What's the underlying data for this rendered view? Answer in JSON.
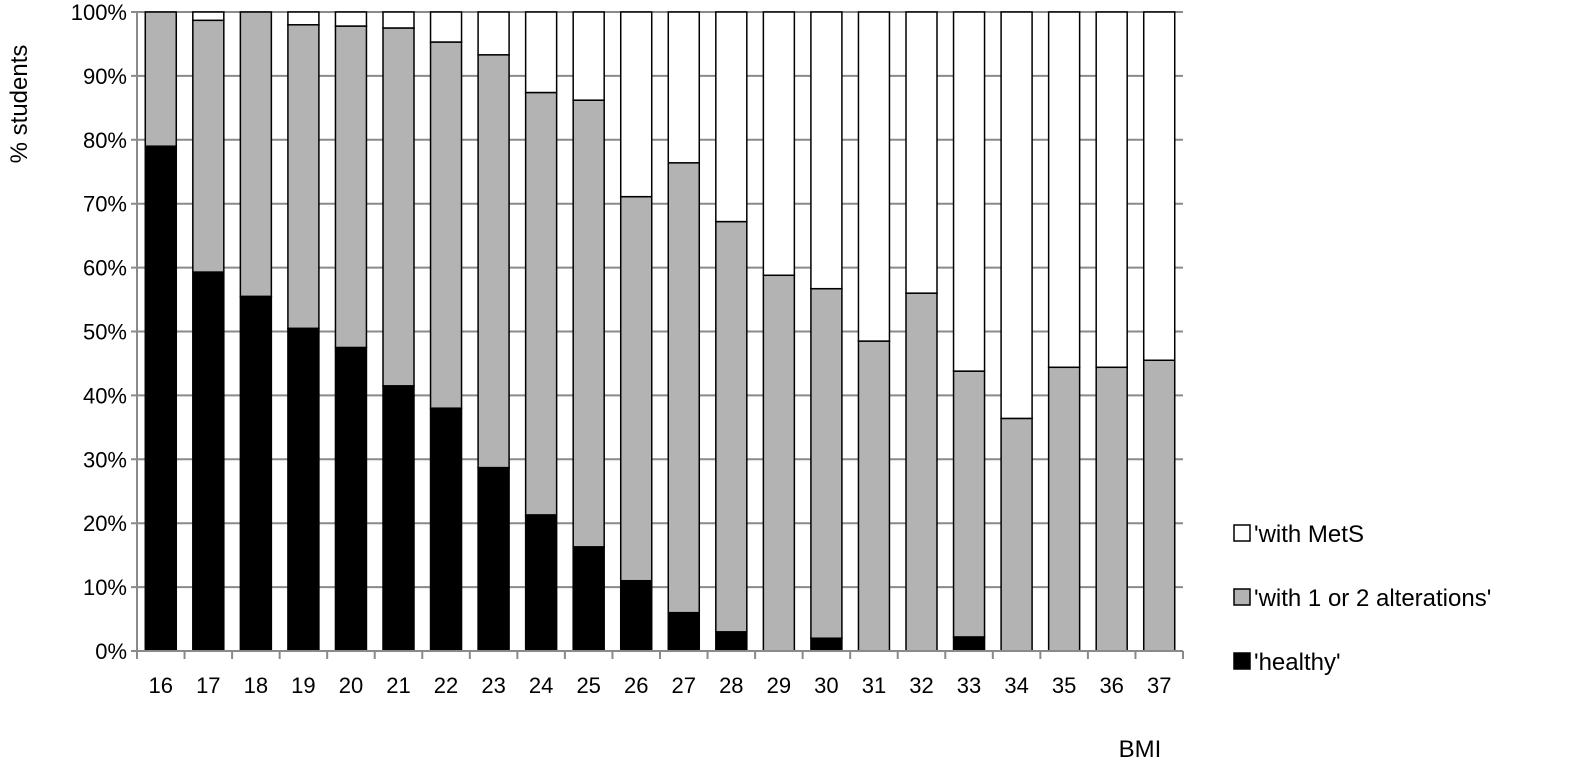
{
  "chart_data": {
    "type": "bar",
    "stacked": true,
    "percent": true,
    "categories": [
      "16",
      "17",
      "18",
      "19",
      "20",
      "21",
      "22",
      "23",
      "24",
      "25",
      "26",
      "27",
      "28",
      "29",
      "30",
      "31",
      "32",
      "33",
      "34",
      "35",
      "36",
      "37"
    ],
    "series": [
      {
        "name": "'healthy'",
        "color": "#000000",
        "values": [
          79,
          59.3,
          55.5,
          50.5,
          47.5,
          41.5,
          38,
          28.7,
          21.3,
          16.3,
          11,
          6,
          3,
          0,
          2,
          0,
          0,
          2.2,
          0,
          0,
          0,
          0
        ]
      },
      {
        "name": "'with 1 or 2 alterations'",
        "color": "#b3b3b3",
        "values": [
          21,
          39.4,
          44.5,
          47.5,
          50.3,
          56,
          57.3,
          64.6,
          66.1,
          69.9,
          60.1,
          70.4,
          64.2,
          58.8,
          54.7,
          48.5,
          56,
          41.6,
          36.4,
          44.4,
          44.4,
          45.5
        ]
      },
      {
        "name": "'with MetS",
        "color": "#ffffff",
        "values": [
          0,
          1.3,
          0,
          2,
          2.2,
          2.5,
          4.7,
          6.7,
          12.6,
          13.8,
          28.9,
          23.6,
          32.8,
          41.2,
          43.3,
          51.5,
          44,
          56.2,
          63.6,
          55.6,
          55.6,
          54.5
        ]
      }
    ],
    "y_ticks": [
      "0%",
      "10%",
      "20%",
      "30%",
      "40%",
      "50%",
      "60%",
      "70%",
      "80%",
      "90%",
      "100%"
    ],
    "ylim": [
      0,
      100
    ],
    "ylabel": "% students",
    "xlabel": "BMI",
    "grid": "horizontal",
    "legend_position": "right",
    "legend_order": [
      "'with MetS",
      "'with 1 or 2 alterations'",
      "'healthy'"
    ]
  }
}
